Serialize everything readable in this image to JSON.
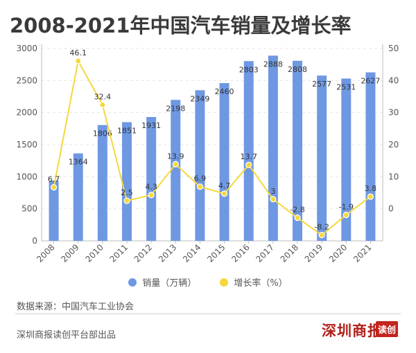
{
  "title": "2008-2021年中国汽车销量及增长率",
  "legend": {
    "sales": "销量（万辆）",
    "growth": "增长率（%）"
  },
  "source": "数据来源：中国汽车工业协会",
  "credit": "深圳商报读创平台部出品",
  "logo": {
    "name": "深圳商报",
    "tag": "读创"
  },
  "colors": {
    "bar": "#6f98e3",
    "line": "#f5d839",
    "marker_fill": "#f5d839",
    "marker_stroke": "#ffffff"
  },
  "chart_data": {
    "type": "bar",
    "categories": [
      "2008",
      "2009",
      "2010",
      "2011",
      "2012",
      "2013",
      "2014",
      "2015",
      "2016",
      "2017",
      "2018",
      "2019",
      "2020",
      "2021"
    ],
    "series": [
      {
        "name": "销量（万辆）",
        "type": "bar",
        "axis": "left",
        "values": [
          938,
          1364,
          1806,
          1851,
          1931,
          2198,
          2349,
          2460,
          2803,
          2888,
          2808,
          2577,
          2531,
          2627
        ]
      },
      {
        "name": "增长率（%）",
        "type": "line",
        "axis": "right",
        "values": [
          6.7,
          46.1,
          32.4,
          2.5,
          4.3,
          13.9,
          6.9,
          4.7,
          13.7,
          3,
          -2.8,
          -8.2,
          -1.9,
          3.8
        ]
      }
    ],
    "y_left": {
      "min": 0,
      "max": 3000,
      "ticks": [
        0,
        500,
        1000,
        1500,
        2000,
        2500,
        3000
      ]
    },
    "y_right": {
      "min": -10,
      "max": 50,
      "ticks": [
        0,
        10,
        20,
        30,
        40,
        50
      ]
    },
    "bar_labels": [
      "",
      "1364",
      "1806",
      "1851",
      "1931",
      "2198",
      "2349",
      "2460",
      "2803",
      "2888",
      "2808",
      "2577",
      "2531",
      "2627"
    ],
    "line_labels": [
      "6.7",
      "46.1",
      "32.4",
      "2.5",
      "4.3",
      "13.9",
      "6.9",
      "4.7",
      "13.7",
      "3",
      "-2.8",
      "-8.2",
      "-1.9",
      "3.8"
    ],
    "grid": true,
    "legend_position": "bottom"
  }
}
